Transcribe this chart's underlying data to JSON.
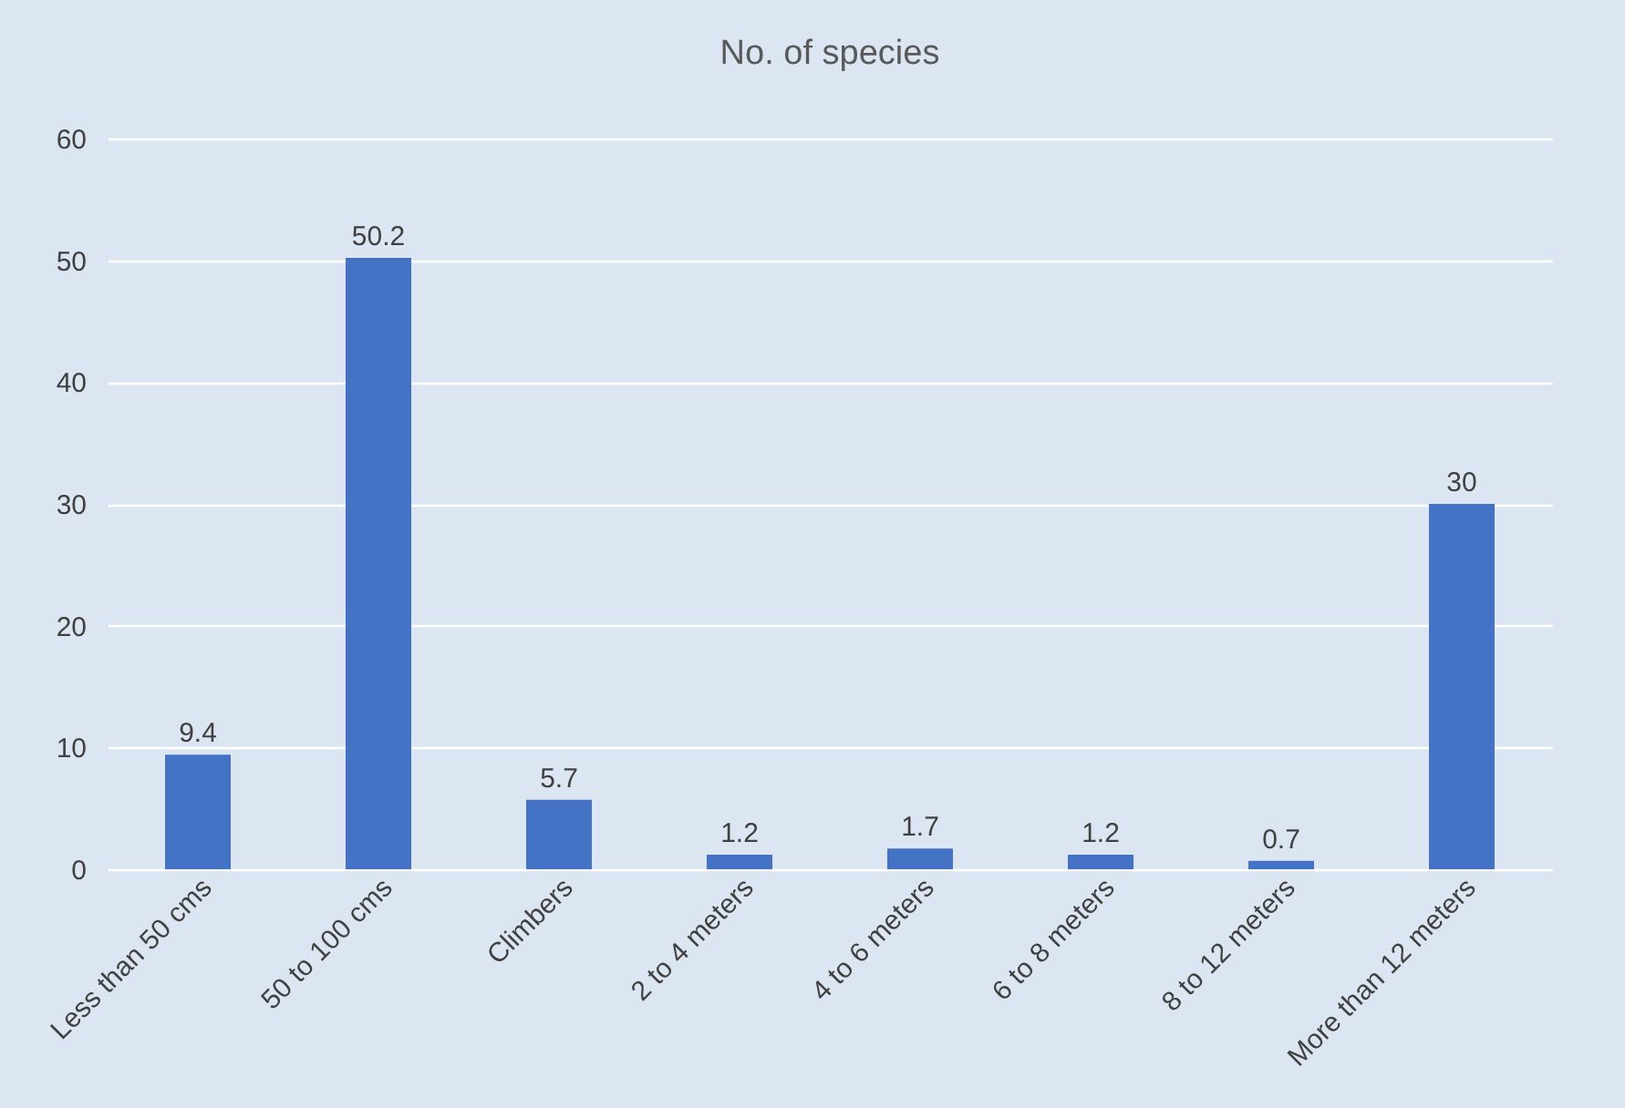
{
  "chart_data": {
    "type": "bar",
    "title": "No. of species",
    "categories": [
      "Less than 50 cms",
      "50 to 100 cms",
      "Climbers",
      "2 to 4 meters",
      "4 to 6 meters",
      "6 to 8 meters",
      "8 to 12 meters",
      "More than 12 meters"
    ],
    "values": [
      9.4,
      50.2,
      5.7,
      1.2,
      1.7,
      1.2,
      0.7,
      30
    ],
    "color": "#4472c4",
    "ylim": [
      0,
      60
    ],
    "yticks": [
      0,
      10,
      20,
      30,
      40,
      50,
      60
    ],
    "grid": "y",
    "data_labels": true
  }
}
